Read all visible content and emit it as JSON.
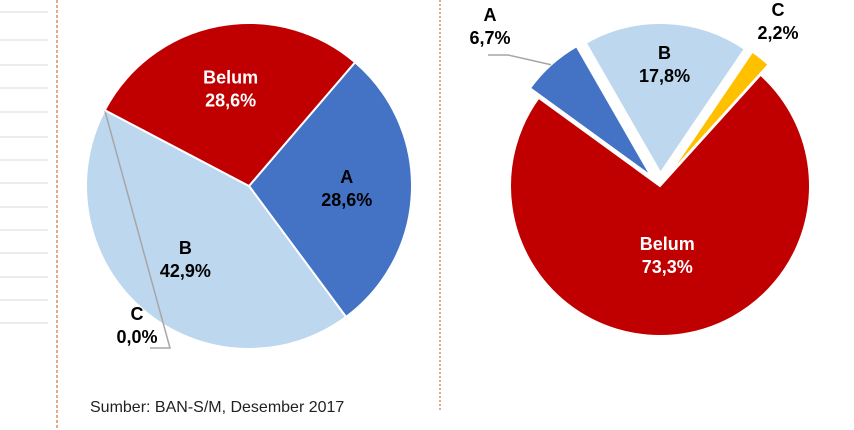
{
  "chart_data": [
    {
      "type": "pie",
      "categories": [
        "A",
        "B",
        "C",
        "Belum"
      ],
      "values": [
        28.6,
        42.9,
        0.0,
        28.6
      ],
      "value_labels": [
        "28,6%",
        "42,9%",
        "0,0%",
        "28,6%"
      ],
      "colors": [
        "#4472c4",
        "#bdd7ee",
        "#ffc000",
        "#c00000"
      ]
    },
    {
      "type": "pie",
      "categories": [
        "A",
        "B",
        "C",
        "Belum"
      ],
      "values": [
        6.7,
        17.8,
        2.2,
        73.3
      ],
      "value_labels": [
        "6,7%",
        "17,8%",
        "2,2%",
        "73,3%"
      ],
      "colors": [
        "#4472c4",
        "#bdd7ee",
        "#ffc000",
        "#c00000"
      ]
    }
  ],
  "source": "Sumber: BAN-S/M, Desember 2017"
}
